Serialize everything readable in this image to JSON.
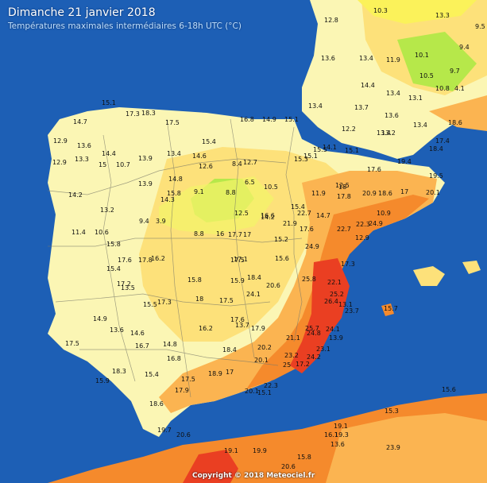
{
  "header": {
    "title": "Dimanche 21 janvier 2018",
    "subtitle": "Températures maximales intermédiaires 6-18h UTC (°C)"
  },
  "footer": {
    "copyright": "Copyright © 2018 Meteociel.fr"
  },
  "colors": {
    "sea": "#1d5fb5",
    "land_cool": "#fbf6b4",
    "land_mild": "#fde17a",
    "land_warm": "#fbb451",
    "land_hot": "#f58a2c",
    "land_very_hot": "#ea3f22",
    "land_cold": "#b6e84a",
    "border_line": "#7a7a6a"
  },
  "temperatures": [
    "12.8",
    "10.3",
    "13.3",
    "9.5",
    "13.6",
    "13.4",
    "11.9",
    "10.1",
    "9.4",
    "10.5",
    "9.7",
    "10.8",
    "4.1",
    "14.4",
    "13.4",
    "13.1",
    "15.1",
    "14.7",
    "17.3",
    "18.3",
    "17.5",
    "16.8",
    "14.9",
    "15.1",
    "12.9",
    "13.6",
    "13.4",
    "13.7",
    "13.6",
    "13.4",
    "12.2",
    "13.2",
    "18.6",
    "13.4",
    "14.1",
    "15.1",
    "17.4",
    "18.4",
    "12.9",
    "13.3",
    "14.4",
    "15",
    "10.7",
    "13.9",
    "13.4",
    "15.4",
    "14.6",
    "12.6",
    "8.4",
    "12.7",
    "15.3",
    "15.1",
    "15.5",
    "17.6",
    "19.4",
    "19.5",
    "14.2",
    "13.9",
    "14.8",
    "15.8",
    "9.1",
    "8.8",
    "6.5",
    "10.5",
    "11.9",
    "12.5",
    "18",
    "20.9",
    "18.6",
    "17",
    "20.1",
    "13.2",
    "14.3",
    "14.2",
    "15.4",
    "3.9",
    "12.5",
    "16.6",
    "14.7",
    "17.8",
    "22.7",
    "21.9",
    "10.9",
    "11.4",
    "10.6",
    "9.4",
    "8.8",
    "16",
    "17.7",
    "17",
    "15.2",
    "17.6",
    "22.7",
    "22.3",
    "24.9",
    "12.9",
    "15.8",
    "17.6",
    "17.8",
    "16.2",
    "17.5",
    "17.1",
    "15.6",
    "24.9",
    "17.3",
    "15.4",
    "17.2",
    "15.8",
    "15.9",
    "18.4",
    "20.6",
    "25.8",
    "22.1",
    "15.7",
    "14.9",
    "15.5",
    "13.5",
    "17.3",
    "18",
    "17.5",
    "24.1",
    "25.2",
    "26.4",
    "23.7",
    "13.1",
    "13.6",
    "14.6",
    "16.2",
    "13.7",
    "17.6",
    "17.9",
    "25.7",
    "24.1",
    "13.9",
    "17.5",
    "16.7",
    "14.8",
    "18.4",
    "20.2",
    "21.1",
    "24.8",
    "23.1",
    "23.2",
    "24.2",
    "25",
    "17.2",
    "18.3",
    "16.8",
    "15.4",
    "17.5",
    "18.9",
    "17",
    "15.9",
    "20.1",
    "22.3",
    "20.1",
    "15.1",
    "17.9",
    "18.6",
    "15.3",
    "15.6",
    "19.7",
    "20.6",
    "19.1",
    "16.1",
    "19.3",
    "13.6",
    "23.9",
    "19.1",
    "19.9",
    "20.6",
    "15.8"
  ]
}
